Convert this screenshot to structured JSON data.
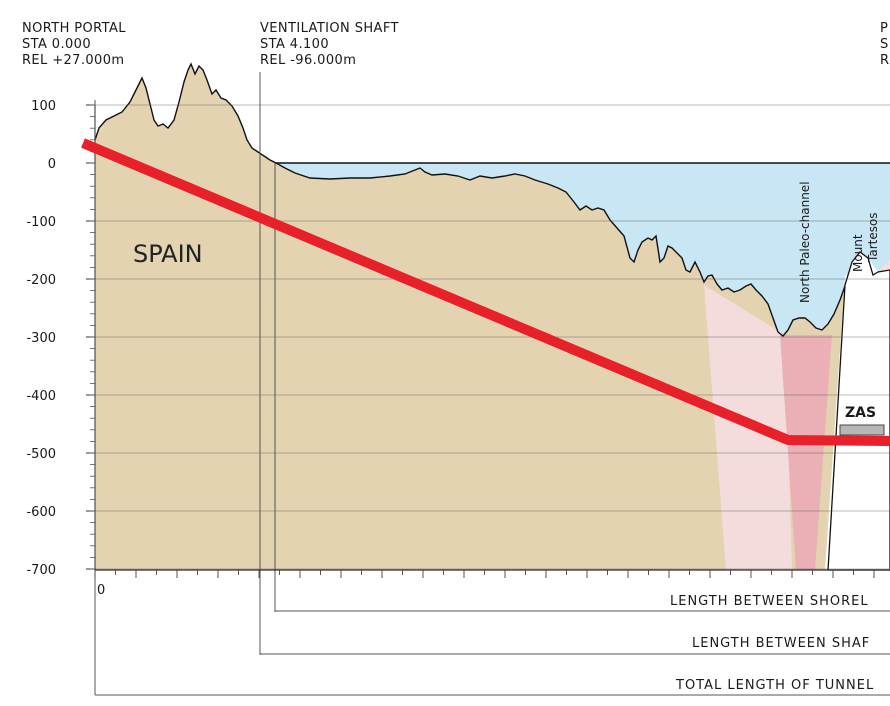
{
  "stations": {
    "north_portal": {
      "name": "NORTH PORTAL",
      "sta": "STA 0.000",
      "rel": "REL +27.000m"
    },
    "ventilation_shaft": {
      "name": "VENTILATION SHAFT",
      "sta": "STA 4.100",
      "rel": "REL -96.000m"
    },
    "right_cut": {
      "name": "P",
      "sta": "S",
      "rel": "R"
    }
  },
  "y_axis": {
    "ticks": [
      "100",
      "0",
      "-100",
      "-200",
      "-300",
      "-400",
      "-500",
      "-600",
      "-700"
    ]
  },
  "x_axis": {
    "origin_label": "0"
  },
  "labels": {
    "region": "SPAIN",
    "paleo_channel": "North Paleo-channel",
    "mount_line1": "Mount",
    "mount_line2": "Tartesos",
    "zas": "ZAS"
  },
  "lengths": {
    "shoreline": "LENGTH BETWEEN SHOREL",
    "shafts": "LENGTH BETWEEN SHAF",
    "total": "TOTAL LENGTH OF TUNNEL"
  },
  "colors": {
    "land": "#e3d3b0",
    "sea": "#c9e6f4",
    "tunnel": "#e8202a",
    "fault_light": "#f4dcdc",
    "fault_dark": "#eab0b6",
    "grid": "#555555"
  }
}
